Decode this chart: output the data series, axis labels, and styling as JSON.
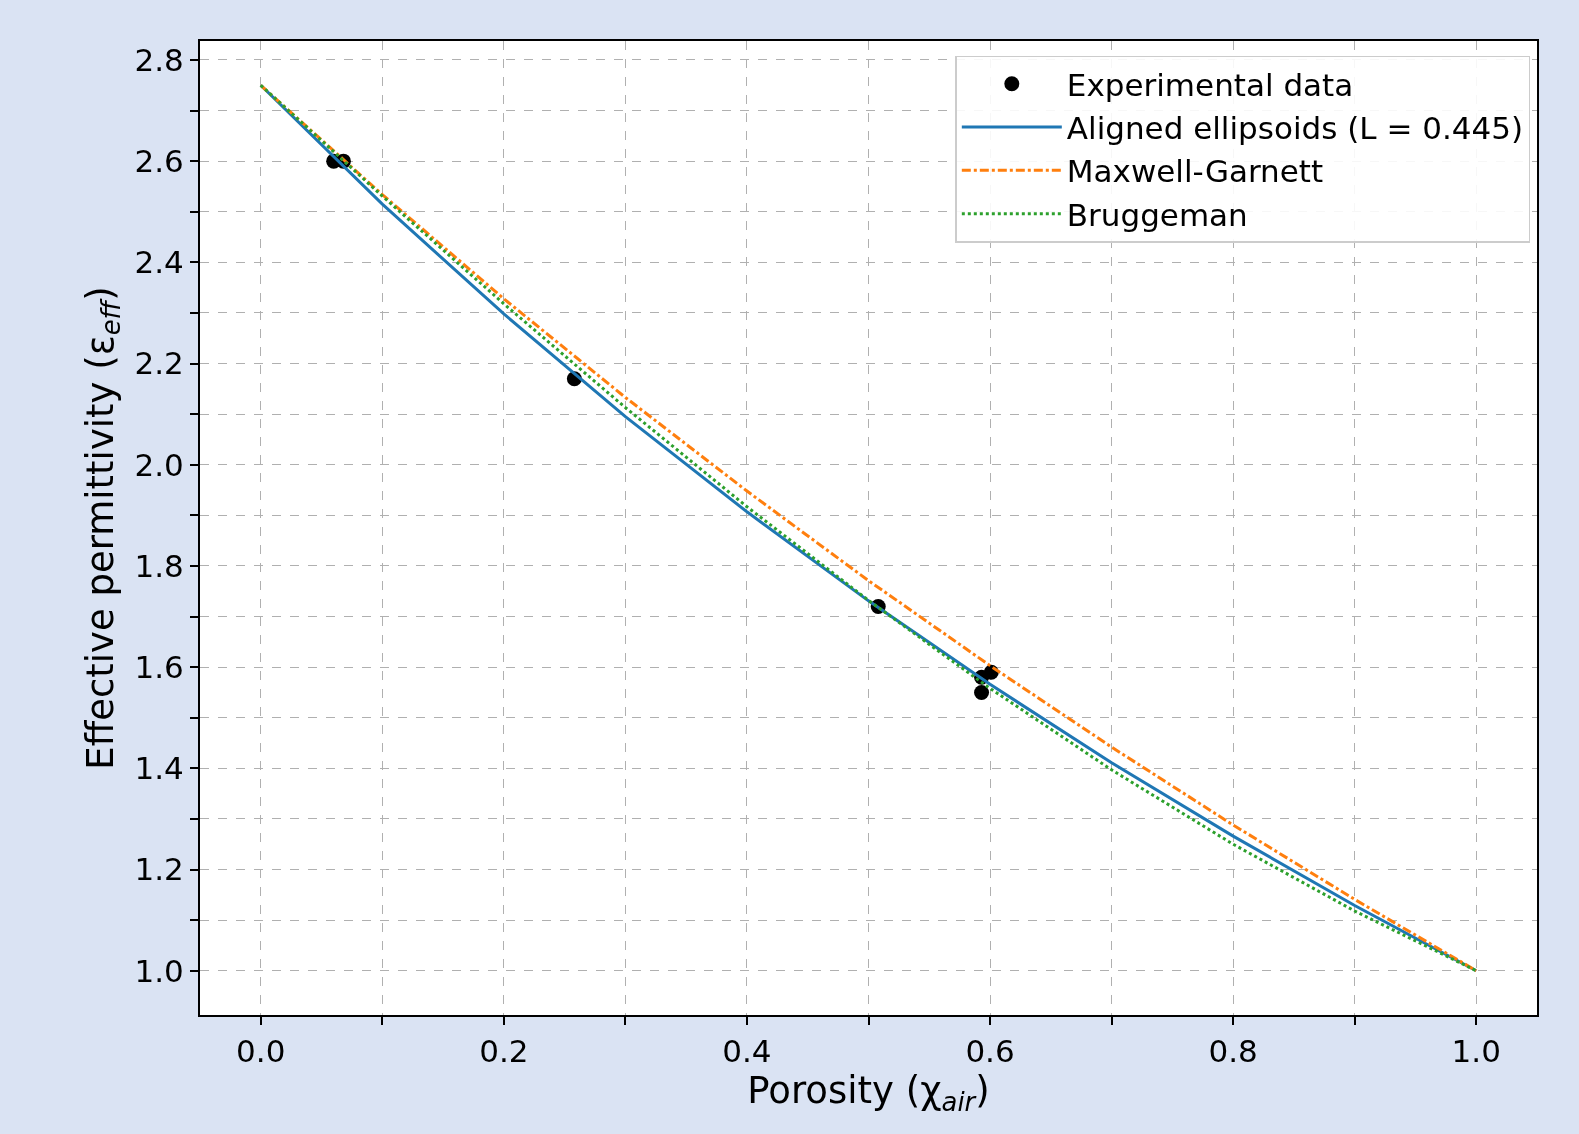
{
  "chart_data": {
    "type": "line",
    "xlabel": "Porosity (χ$_{air}$)",
    "ylabel": "Effective permittivity (ε$_{eff}$)",
    "xlim": [
      -0.05,
      1.05
    ],
    "ylim": [
      0.9125,
      2.8375
    ],
    "xticks": [
      {
        "value": 0.0,
        "label": "0.0"
      },
      {
        "value": 0.1,
        "label": null
      },
      {
        "value": 0.2,
        "label": "0.2"
      },
      {
        "value": 0.3,
        "label": null
      },
      {
        "value": 0.4,
        "label": "0.4"
      },
      {
        "value": 0.5,
        "label": null
      },
      {
        "value": 0.6,
        "label": "0.6"
      },
      {
        "value": 0.7,
        "label": null
      },
      {
        "value": 0.8,
        "label": "0.8"
      },
      {
        "value": 0.9,
        "label": null
      },
      {
        "value": 1.0,
        "label": "1.0"
      }
    ],
    "yticks": [
      {
        "value": 1.0,
        "label": "1.0"
      },
      {
        "value": 1.1,
        "label": null
      },
      {
        "value": 1.2,
        "label": "1.2"
      },
      {
        "value": 1.3,
        "label": null
      },
      {
        "value": 1.4,
        "label": "1.4"
      },
      {
        "value": 1.5,
        "label": null
      },
      {
        "value": 1.6,
        "label": "1.6"
      },
      {
        "value": 1.7,
        "label": null
      },
      {
        "value": 1.8,
        "label": "1.8"
      },
      {
        "value": 1.9,
        "label": null
      },
      {
        "value": 2.0,
        "label": "2.0"
      },
      {
        "value": 2.1,
        "label": null
      },
      {
        "value": 2.2,
        "label": "2.2"
      },
      {
        "value": 2.3,
        "label": null
      },
      {
        "value": 2.4,
        "label": "2.4"
      },
      {
        "value": 2.5,
        "label": null
      },
      {
        "value": 2.6,
        "label": "2.6"
      },
      {
        "value": 2.7,
        "label": null
      },
      {
        "value": 2.8,
        "label": "2.8"
      }
    ],
    "grid": true,
    "legend": "top right",
    "series": [
      {
        "type": "scatter",
        "name": "Experimental data",
        "color": "#000000",
        "marker": "circle",
        "x": [
          0.06,
          0.068,
          0.258,
          0.508,
          0.593,
          0.593,
          0.601
        ],
        "values": [
          2.6,
          2.6,
          2.17,
          1.72,
          1.58,
          1.55,
          1.59
        ]
      },
      {
        "name": "Aligned ellipsoids (L = 0.445)",
        "color": "#1f77b4",
        "line_style": "solid",
        "x": [
          0,
          0.1,
          0.2,
          0.3,
          0.4,
          0.5,
          0.6,
          0.7,
          0.8,
          0.9,
          1.0
        ],
        "values": [
          2.75,
          2.515,
          2.298,
          2.095,
          1.907,
          1.731,
          1.566,
          1.411,
          1.266,
          1.129,
          1.0
        ]
      },
      {
        "name": "Maxwell-Garnett",
        "color": "#ff7f0e",
        "line_style": "dashdot",
        "x": [
          0,
          0.1,
          0.2,
          0.3,
          0.4,
          0.5,
          0.6,
          0.7,
          0.8,
          0.9,
          1.0
        ],
        "values": [
          2.75,
          2.534,
          2.328,
          2.133,
          1.948,
          1.771,
          1.603,
          1.442,
          1.288,
          1.141,
          1.0
        ]
      },
      {
        "name": "Bruggeman",
        "color": "#2ca02c",
        "line_style": "dotted",
        "x": [
          0,
          0.1,
          0.2,
          0.3,
          0.4,
          0.5,
          0.6,
          0.7,
          0.8,
          0.9,
          1.0
        ],
        "values": [
          2.75,
          2.531,
          2.318,
          2.113,
          1.917,
          1.732,
          1.558,
          1.397,
          1.25,
          1.118,
          1.0
        ]
      }
    ]
  }
}
